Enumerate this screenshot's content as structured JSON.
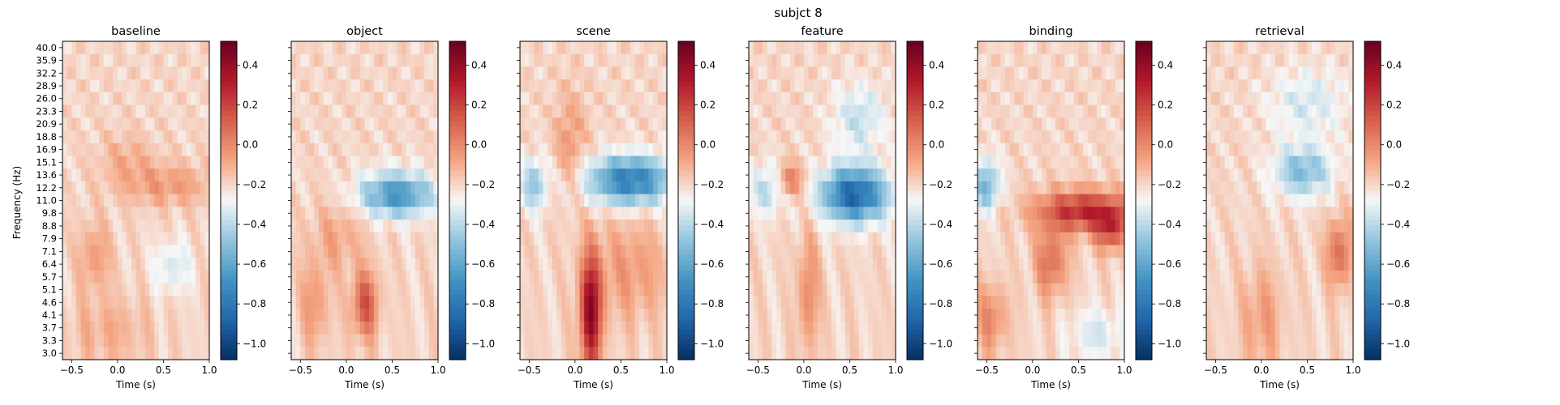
{
  "chart_data": {
    "type": "heatmap",
    "suptitle": "subjct 8",
    "ylabel": "Frequency (Hz)",
    "xlabel": "Time (s)",
    "x_range": [
      -0.6,
      1.0
    ],
    "x_ticks": [
      -0.5,
      0.0,
      0.5,
      1.0
    ],
    "x_tick_labels": [
      "−0.5",
      "0.0",
      "0.5",
      "1.0"
    ],
    "y_ticks_hz": [
      40.0,
      35.9,
      32.2,
      28.9,
      26.0,
      23.3,
      20.9,
      18.8,
      16.9,
      15.1,
      13.6,
      12.2,
      11.0,
      9.8,
      8.8,
      7.9,
      7.1,
      6.4,
      5.7,
      5.1,
      4.6,
      4.1,
      3.7,
      3.3,
      3.0
    ],
    "y_tick_labels": [
      "40.0",
      "35.9",
      "32.2",
      "28.9",
      "26.0",
      "23.3",
      "20.9",
      "18.8",
      "16.9",
      "15.1",
      "13.6",
      "12.2",
      "11.0",
      "9.8",
      "8.8",
      "7.9",
      "7.1",
      "6.4",
      "5.7",
      "5.1",
      "4.6",
      "4.1",
      "3.7",
      "3.3",
      "3.0"
    ],
    "colorbar": {
      "vmin": -1.08,
      "vmax": 0.52,
      "colormap": "RdBu_r",
      "ticks": [
        0.4,
        0.2,
        0.0,
        -0.2,
        -0.4,
        -0.6,
        -0.8,
        -1.0
      ],
      "tick_labels": [
        "0.4",
        "0.2",
        "0.0",
        "−0.2",
        "−0.4",
        "−0.6",
        "−0.8",
        "−1.0"
      ]
    },
    "panels": [
      {
        "title": "baseline",
        "components": [
          {
            "t": -0.25,
            "f": 6.8,
            "amp": 0.15,
            "st": 0.12,
            "sf": 0.2
          },
          {
            "t": 0.55,
            "f": 12.5,
            "amp": 0.15,
            "st": 0.35,
            "sf": 0.12
          },
          {
            "t": 0.1,
            "f": 15.5,
            "amp": 0.1,
            "st": 0.2,
            "sf": 0.15
          },
          {
            "t": 0.6,
            "f": 6.2,
            "amp": -0.15,
            "st": 0.15,
            "sf": 0.15
          },
          {
            "t": -0.1,
            "f": 3.6,
            "amp": 0.1,
            "st": 0.3,
            "sf": 0.2
          }
        ]
      },
      {
        "title": "object",
        "components": [
          {
            "t": 0.2,
            "f": 4.5,
            "amp": 0.35,
            "st": 0.1,
            "sf": 0.2
          },
          {
            "t": -0.35,
            "f": 4.5,
            "amp": 0.15,
            "st": 0.12,
            "sf": 0.25
          },
          {
            "t": 0.55,
            "f": 11.5,
            "amp": -0.48,
            "st": 0.28,
            "sf": 0.13
          },
          {
            "t": -0.1,
            "f": 8.0,
            "amp": 0.12,
            "st": 0.2,
            "sf": 0.2
          }
        ]
      },
      {
        "title": "scene",
        "components": [
          {
            "t": 0.17,
            "f": 4.2,
            "amp": 0.62,
            "st": 0.08,
            "sf": 0.35
          },
          {
            "t": 0.6,
            "f": 13.0,
            "amp": -0.58,
            "st": 0.32,
            "sf": 0.14
          },
          {
            "t": -0.45,
            "f": 12.5,
            "amp": -0.28,
            "st": 0.1,
            "sf": 0.15
          },
          {
            "t": -0.05,
            "f": 18.0,
            "amp": 0.15,
            "st": 0.12,
            "sf": 0.3
          },
          {
            "t": 0.6,
            "f": 6.0,
            "amp": 0.15,
            "st": 0.3,
            "sf": 0.3
          }
        ]
      },
      {
        "title": "feature",
        "components": [
          {
            "t": 0.05,
            "f": 5.0,
            "amp": 0.2,
            "st": 0.08,
            "sf": 0.35
          },
          {
            "t": 0.55,
            "f": 11.5,
            "amp": -0.68,
            "st": 0.25,
            "sf": 0.16
          },
          {
            "t": -0.4,
            "f": 12.0,
            "amp": -0.22,
            "st": 0.12,
            "sf": 0.15
          },
          {
            "t": -0.15,
            "f": 13.0,
            "amp": 0.25,
            "st": 0.1,
            "sf": 0.1
          },
          {
            "t": 0.6,
            "f": 22.0,
            "amp": -0.18,
            "st": 0.2,
            "sf": 0.2
          }
        ]
      },
      {
        "title": "binding",
        "components": [
          {
            "t": 0.55,
            "f": 10.0,
            "amp": 0.48,
            "st": 0.35,
            "sf": 0.12
          },
          {
            "t": 0.85,
            "f": 8.5,
            "amp": 0.35,
            "st": 0.12,
            "sf": 0.12
          },
          {
            "t": 0.2,
            "f": 6.5,
            "amp": 0.28,
            "st": 0.12,
            "sf": 0.2
          },
          {
            "t": -0.5,
            "f": 12.5,
            "amp": -0.35,
            "st": 0.1,
            "sf": 0.15
          },
          {
            "t": -0.45,
            "f": 4.0,
            "amp": 0.2,
            "st": 0.12,
            "sf": 0.2
          },
          {
            "t": 0.7,
            "f": 3.5,
            "amp": -0.15,
            "st": 0.2,
            "sf": 0.15
          }
        ]
      },
      {
        "title": "retrieval",
        "components": [
          {
            "t": 0.45,
            "f": 14.0,
            "amp": -0.32,
            "st": 0.22,
            "sf": 0.15
          },
          {
            "t": 0.85,
            "f": 7.0,
            "amp": 0.28,
            "st": 0.1,
            "sf": 0.2
          },
          {
            "t": 0.0,
            "f": 4.0,
            "amp": 0.15,
            "st": 0.15,
            "sf": 0.3
          },
          {
            "t": 0.5,
            "f": 25.0,
            "amp": -0.15,
            "st": 0.3,
            "sf": 0.2
          }
        ]
      }
    ]
  }
}
